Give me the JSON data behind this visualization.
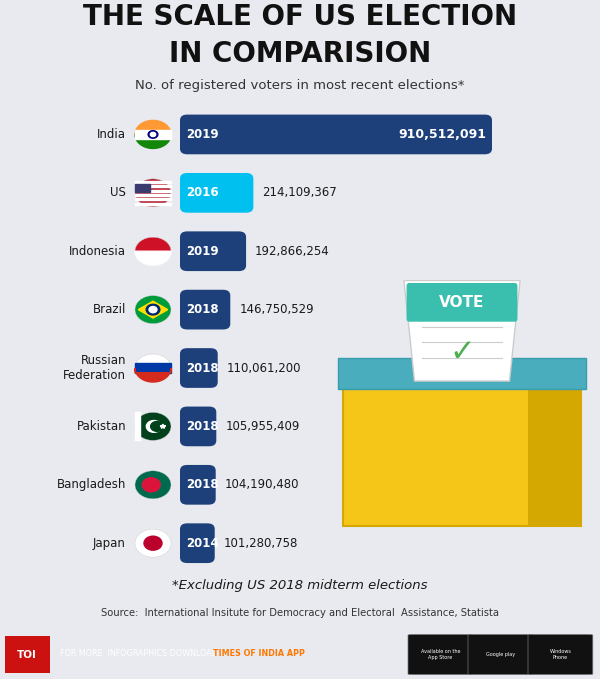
{
  "title_line1": "THE SCALE OF US ELECTION",
  "title_line2": "IN COMPARISION",
  "subtitle": "No. of registered voters in most recent elections*",
  "countries": [
    "India",
    "US",
    "Indonesia",
    "Brazil",
    "Russian\nFederation",
    "Pakistan",
    "Bangladesh",
    "Japan"
  ],
  "years": [
    "2019",
    "2016",
    "2019",
    "2018",
    "2018",
    "2018",
    "2018",
    "2014"
  ],
  "values": [
    910512091,
    214109367,
    192866254,
    146750529,
    110061200,
    105955409,
    104190480,
    101280758
  ],
  "labels": [
    "910,512,091",
    "214,109,367",
    "192,866,254",
    "146,750,529",
    "110,061,200",
    "105,955,409",
    "104,190,480",
    "101,280,758"
  ],
  "bar_color_india": "#1d3f7a",
  "bar_color_us": "#00c0f0",
  "bar_color_others": "#1d3f7a",
  "bg_color": "#e8eaef",
  "title_color": "#111111",
  "footnote": "*Excluding US 2018 midterm elections",
  "source": "Source:  International Insitute for Democracy and Electoral  Assistance, Statista",
  "footer_bg": "#222222",
  "footer_text": "FOR MORE  INFOGRAPHICS DOWNLOAD ",
  "footer_highlight": "TIMES OF INDIA APP",
  "toi_red": "#cc1111"
}
